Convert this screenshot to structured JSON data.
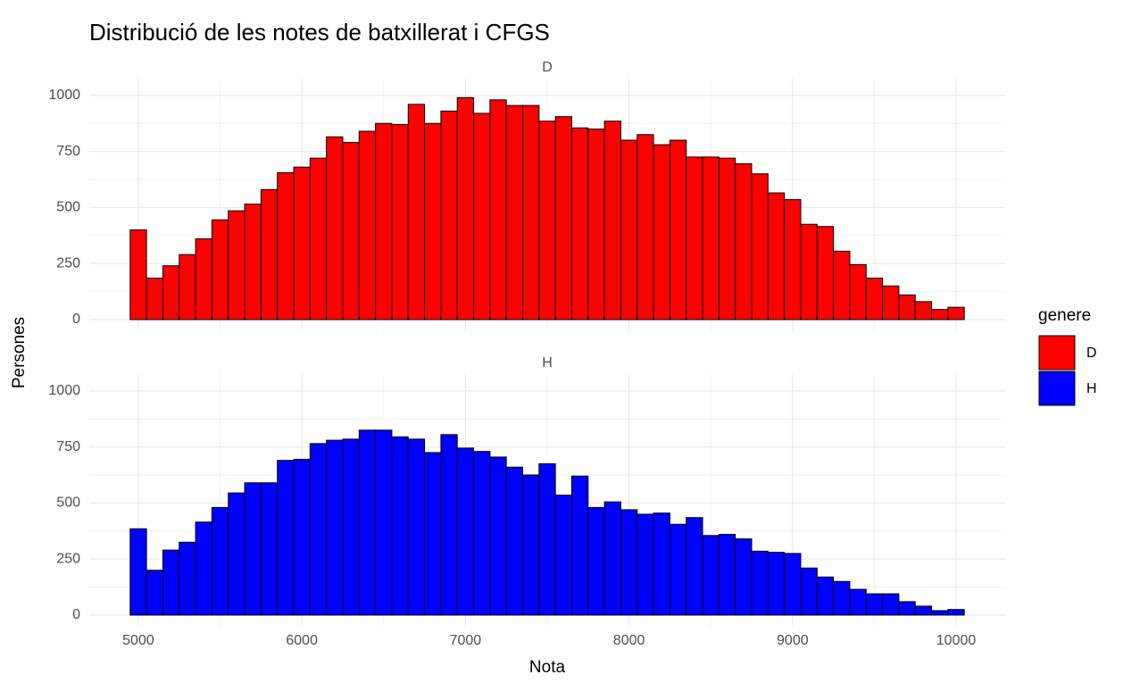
{
  "chart_data": {
    "type": "histogram",
    "title": "Distribució de les notes de batxillerat i CFGS",
    "x_label": "Nota",
    "y_label": "Persones",
    "legend_title": "genere",
    "bins": [
      4950,
      5050,
      5150,
      5250,
      5350,
      5450,
      5550,
      5650,
      5750,
      5850,
      5950,
      6050,
      6150,
      6250,
      6350,
      6450,
      6550,
      6650,
      6750,
      6850,
      6950,
      7050,
      7150,
      7250,
      7350,
      7450,
      7550,
      7650,
      7750,
      7850,
      7950,
      8050,
      8150,
      8250,
      8350,
      8450,
      8550,
      8650,
      8750,
      8850,
      8950,
      9050,
      9150,
      9250,
      9350,
      9450,
      9550,
      9650,
      9750,
      9850,
      9950,
      10050
    ],
    "series": [
      {
        "name": "D",
        "color": "#ff0000",
        "values": [
          400,
          185,
          240,
          290,
          360,
          445,
          485,
          515,
          580,
          655,
          680,
          720,
          815,
          790,
          840,
          875,
          870,
          960,
          875,
          930,
          990,
          920,
          980,
          955,
          955,
          885,
          905,
          855,
          850,
          885,
          800,
          825,
          780,
          800,
          725,
          725,
          720,
          695,
          650,
          565,
          535,
          425,
          415,
          305,
          245,
          185,
          150,
          110,
          80,
          45,
          55
        ]
      },
      {
        "name": "H",
        "color": "#0000ff",
        "values": [
          385,
          200,
          290,
          325,
          415,
          480,
          545,
          590,
          590,
          690,
          695,
          765,
          780,
          785,
          825,
          825,
          795,
          785,
          725,
          805,
          745,
          730,
          705,
          660,
          625,
          675,
          535,
          620,
          480,
          505,
          470,
          450,
          455,
          405,
          435,
          355,
          360,
          340,
          285,
          280,
          275,
          210,
          170,
          150,
          115,
          95,
          95,
          60,
          40,
          20,
          25
        ]
      }
    ],
    "xlim": [
      4700,
      10300
    ],
    "xticks": [
      5000,
      6000,
      7000,
      8000,
      9000,
      10000
    ],
    "ylim": [
      -50,
      1075
    ],
    "yticks": [
      0,
      250,
      500,
      750,
      1000
    ],
    "grid": true,
    "legend_position": "right"
  }
}
